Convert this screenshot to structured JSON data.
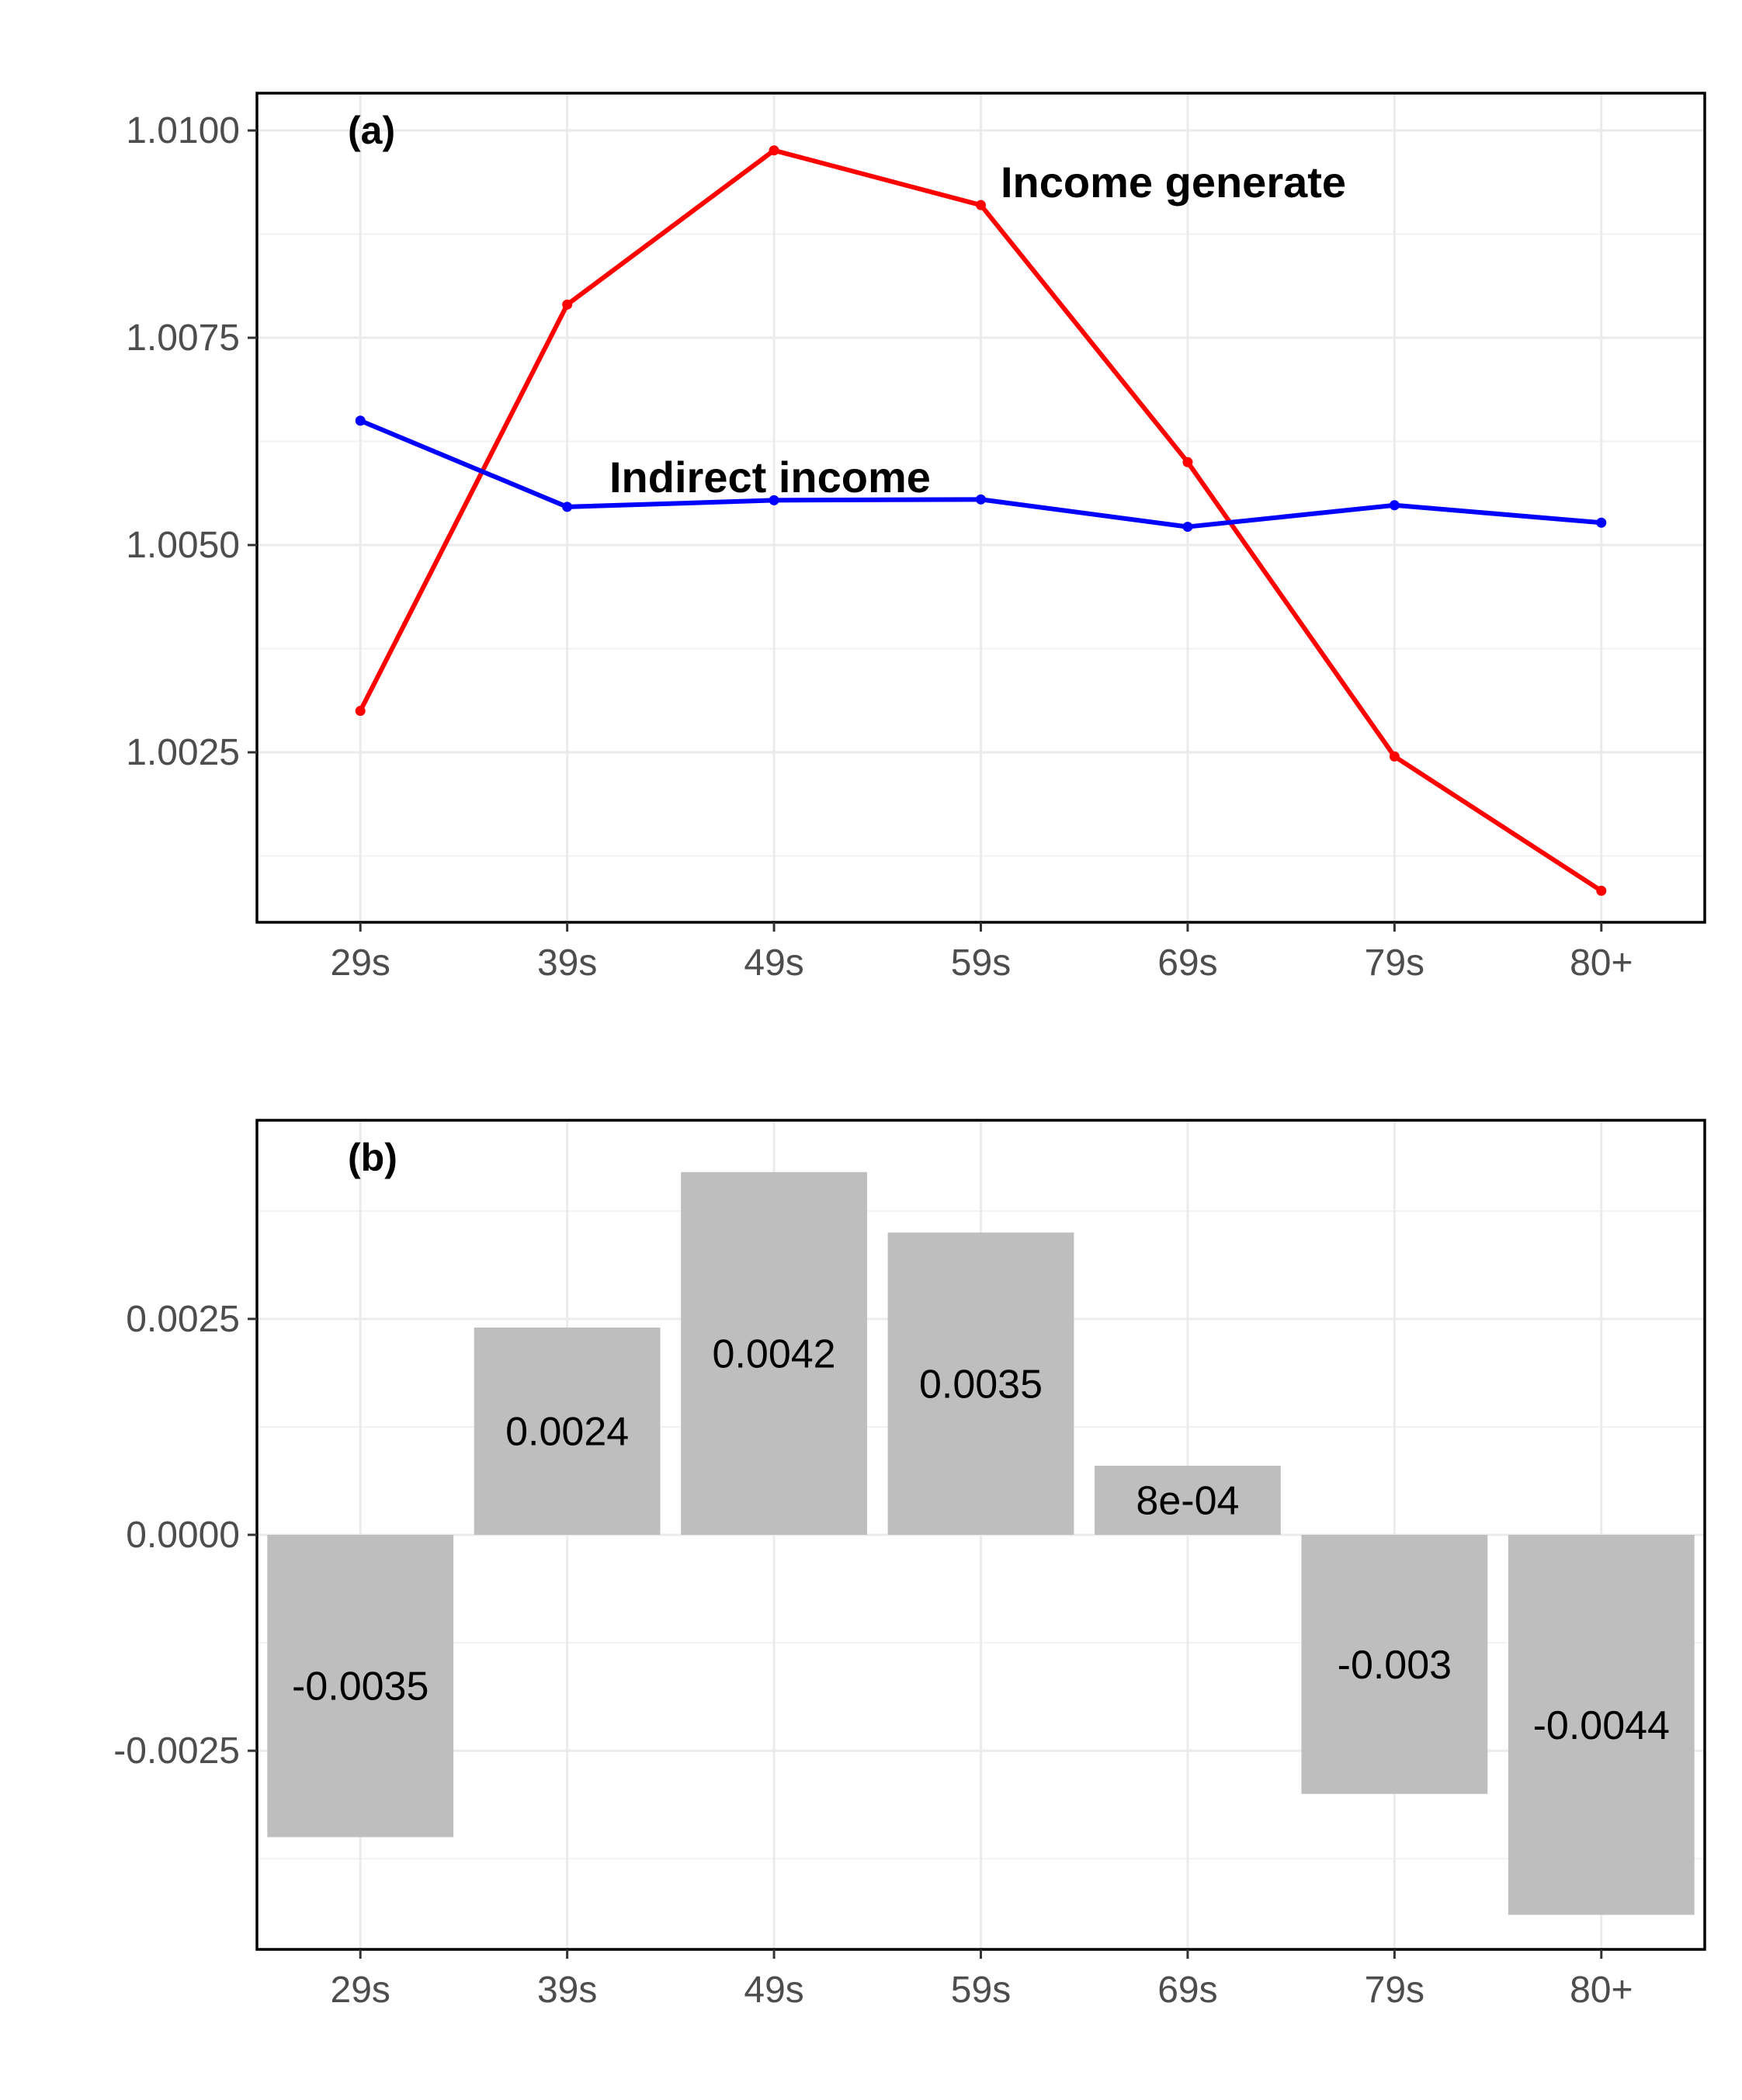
{
  "colors": {
    "income_generate": "#ff0000",
    "indirect_income": "#0000ff",
    "bar_fill": "#bebebe"
  },
  "chart_data": [
    {
      "type": "line",
      "panel_tag": "(a)",
      "categories": [
        "29s",
        "39s",
        "49s",
        "59s",
        "69s",
        "79s",
        "80+"
      ],
      "yticks": [
        "1.0025",
        "1.0050",
        "1.0075",
        "1.0100"
      ],
      "ylim": [
        1.00045,
        1.01045
      ],
      "grid": true,
      "series": [
        {
          "name": "Income generate",
          "color": "#ff0000",
          "values": [
            1.003,
            1.0079,
            1.00976,
            1.0091,
            1.006,
            1.00245,
            1.00083
          ]
        },
        {
          "name": "Indirect income",
          "color": "#0000ff",
          "values": [
            1.0065,
            1.00546,
            1.00554,
            1.00555,
            1.00522,
            1.00548,
            1.00527
          ]
        }
      ]
    },
    {
      "type": "bar",
      "panel_tag": "(b)",
      "categories": [
        "29s",
        "39s",
        "49s",
        "59s",
        "69s",
        "79s",
        "80+"
      ],
      "values": [
        -0.0035,
        0.0024,
        0.0042,
        0.0035,
        0.0008,
        -0.003,
        -0.0044
      ],
      "value_labels": [
        "-0.0035",
        "0.0024",
        "0.0042",
        "0.0035",
        "8e-04",
        "-0.003",
        "-0.0044"
      ],
      "yticks": [
        "-0.0025",
        "0.0000",
        "0.0025"
      ],
      "ylim": [
        -0.0048,
        0.0048
      ],
      "grid": true
    }
  ]
}
